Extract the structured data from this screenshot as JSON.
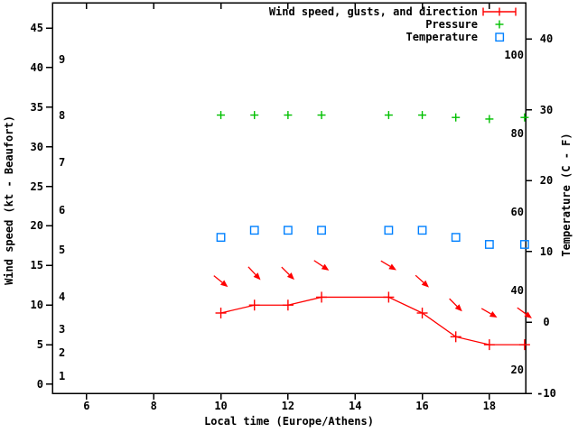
{
  "chart": {
    "background": "#ffffff",
    "foreground": "#000000",
    "legend": [
      {
        "key": "wind",
        "label": "Wind speed, gusts, and direction",
        "glyph": "errorbar",
        "color": "#ff0000"
      },
      {
        "key": "pressure",
        "label": "Pressure",
        "glyph": "plus",
        "color": "#00c000"
      },
      {
        "key": "temperature",
        "label": "Temperature",
        "glyph": "square",
        "color": "#0080ff"
      }
    ]
  },
  "chart_data": {
    "type": "line",
    "title": "",
    "x_axis": {
      "label": "Local time (Europe/Athens)",
      "ticks": [
        6,
        8,
        10,
        12,
        14,
        16,
        18
      ],
      "range": [
        4.98,
        19.08
      ]
    },
    "y_axis_wind": {
      "label": "Wind speed (kt - Beaufort)",
      "ticks_kt": [
        0,
        5,
        10,
        15,
        20,
        25,
        30,
        35,
        40,
        45
      ],
      "range_kt": [
        -1.14,
        48.19
      ],
      "beaufort_labels": [
        {
          "beaufort": "1",
          "at_kt": 1
        },
        {
          "beaufort": "2",
          "at_kt": 4
        },
        {
          "beaufort": "3",
          "at_kt": 7
        },
        {
          "beaufort": "4",
          "at_kt": 11
        },
        {
          "beaufort": "5",
          "at_kt": 17
        },
        {
          "beaufort": "6",
          "at_kt": 22
        },
        {
          "beaufort": "7",
          "at_kt": 28
        },
        {
          "beaufort": "8",
          "at_kt": 34
        },
        {
          "beaufort": "9",
          "at_kt": 41
        }
      ]
    },
    "y_axis_temp": {
      "label": "Temperature (C - F)",
      "ticks_c": [
        40,
        30,
        20,
        10,
        0,
        -10
      ],
      "range_c": [
        -10,
        45.1
      ],
      "labels_f": [
        100,
        80,
        60,
        40,
        20
      ]
    },
    "hours": [
      10,
      11,
      12,
      13,
      15,
      16,
      17,
      18,
      19.05
    ],
    "series": [
      {
        "key": "wind",
        "name": "Wind speed, gusts, and direction",
        "mark": "plus-line",
        "color": "#ff0000",
        "speed_kt": [
          9,
          10,
          10,
          11,
          11,
          9,
          6,
          5,
          5
        ],
        "gust_kt": [
          13,
          14,
          14,
          15,
          15,
          13,
          10,
          9,
          9
        ],
        "direction_arrow_deg_below_east": [
          39,
          47,
          45,
          34,
          31,
          42,
          45,
          30,
          36
        ]
      },
      {
        "key": "pressure",
        "name": "Pressure",
        "mark": "plus",
        "color": "#00c000",
        "level_on_wind_axis_kt": [
          34,
          34,
          34,
          34,
          34,
          34,
          33.7,
          33.5,
          33.7
        ]
      },
      {
        "key": "temperature",
        "name": "Temperature",
        "mark": "open-square",
        "color": "#0080ff",
        "temp_c": [
          12,
          13,
          13,
          13,
          13,
          13,
          12,
          11,
          11
        ]
      }
    ]
  }
}
